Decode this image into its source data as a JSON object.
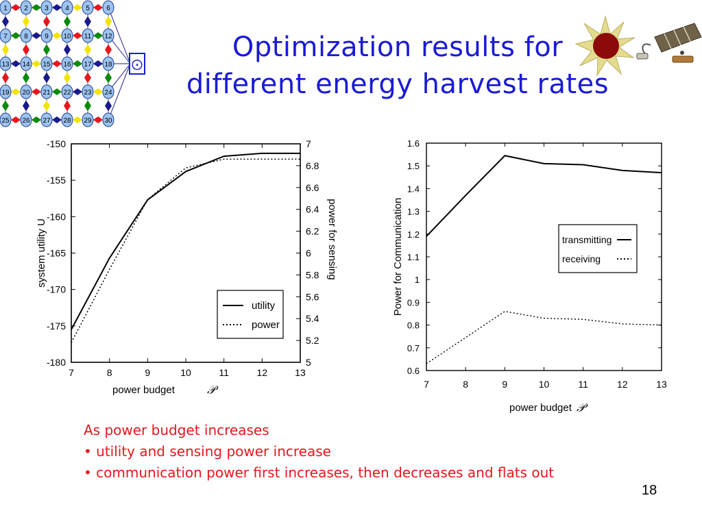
{
  "slide": {
    "title_line1": "Optimization results for",
    "title_line2": "different energy harvest rates",
    "page_number": "18"
  },
  "bullets": {
    "intro": "As power budget increases",
    "items": [
      "• utility and sensing power increase",
      "• communication power first increases, then decreases and flats out"
    ]
  },
  "network": {
    "nodes": [
      "1",
      "2",
      "3",
      "4",
      "5",
      "6",
      "7",
      "8",
      "9",
      "10",
      "11",
      "12",
      "13",
      "14",
      "15",
      "16",
      "17",
      "18",
      "19",
      "20",
      "21",
      "22",
      "23",
      "24",
      "25",
      "26",
      "27",
      "28",
      "29",
      "30"
    ],
    "sink_glyph": "⨀",
    "node_fill": "#9dc3f0",
    "diamond_colors": [
      "#e8161c",
      "#0b8a0b",
      "#1a1a8c",
      "#f2e400"
    ]
  },
  "icons": [
    "sun-icon",
    "solar-panel-icon"
  ],
  "chart_data": [
    {
      "type": "line",
      "x": [
        7,
        8,
        9,
        10,
        11,
        12,
        13
      ],
      "xlabel": "power budget",
      "xlabel_symbol": "𝒫",
      "ylabel": "system utility U",
      "y2label": "power for sensing",
      "ylim": [
        -180,
        -150
      ],
      "y2lim": [
        5,
        7
      ],
      "yticks": [
        "-150",
        "-155",
        "-160",
        "-165",
        "-170",
        "-175",
        "-180"
      ],
      "y2ticks": [
        "7",
        "6.8",
        "6.6",
        "6.4",
        "6.2",
        "6",
        "5.8",
        "5.6",
        "5.4",
        "5.2",
        "5"
      ],
      "xticks": [
        "7",
        "8",
        "9",
        "10",
        "11",
        "12",
        "13"
      ],
      "legend_position": "bottom-right",
      "series": [
        {
          "name": "utility",
          "axis": "left",
          "style": "solid",
          "values": [
            -175.5,
            -165.7,
            -157.7,
            -153.8,
            -151.7,
            -151.3,
            -151.3
          ]
        },
        {
          "name": "power",
          "axis": "right",
          "style": "dotted",
          "values": [
            5.18,
            5.85,
            6.49,
            6.78,
            6.86,
            6.86,
            6.86
          ]
        }
      ]
    },
    {
      "type": "line",
      "x": [
        7,
        8,
        9,
        10,
        11,
        12,
        13
      ],
      "xlabel": "power budget",
      "xlabel_symbol": "𝒫",
      "ylabel": "Power for Communication",
      "ylim": [
        0.6,
        1.6
      ],
      "yticks": [
        "1.6",
        "1.5",
        "1.4",
        "1.3",
        "1.2",
        "1.1",
        "1",
        "0.9",
        "0.8",
        "0.7",
        "0.6"
      ],
      "xticks": [
        "7",
        "8",
        "9",
        "10",
        "11",
        "12",
        "13"
      ],
      "legend_position": "center-right",
      "series": [
        {
          "name": "transmitting",
          "style": "solid",
          "values": [
            1.19,
            1.37,
            1.545,
            1.51,
            1.505,
            1.48,
            1.47
          ]
        },
        {
          "name": "receiving",
          "style": "dotted",
          "values": [
            0.63,
            0.745,
            0.86,
            0.83,
            0.825,
            0.805,
            0.8
          ]
        }
      ]
    }
  ]
}
